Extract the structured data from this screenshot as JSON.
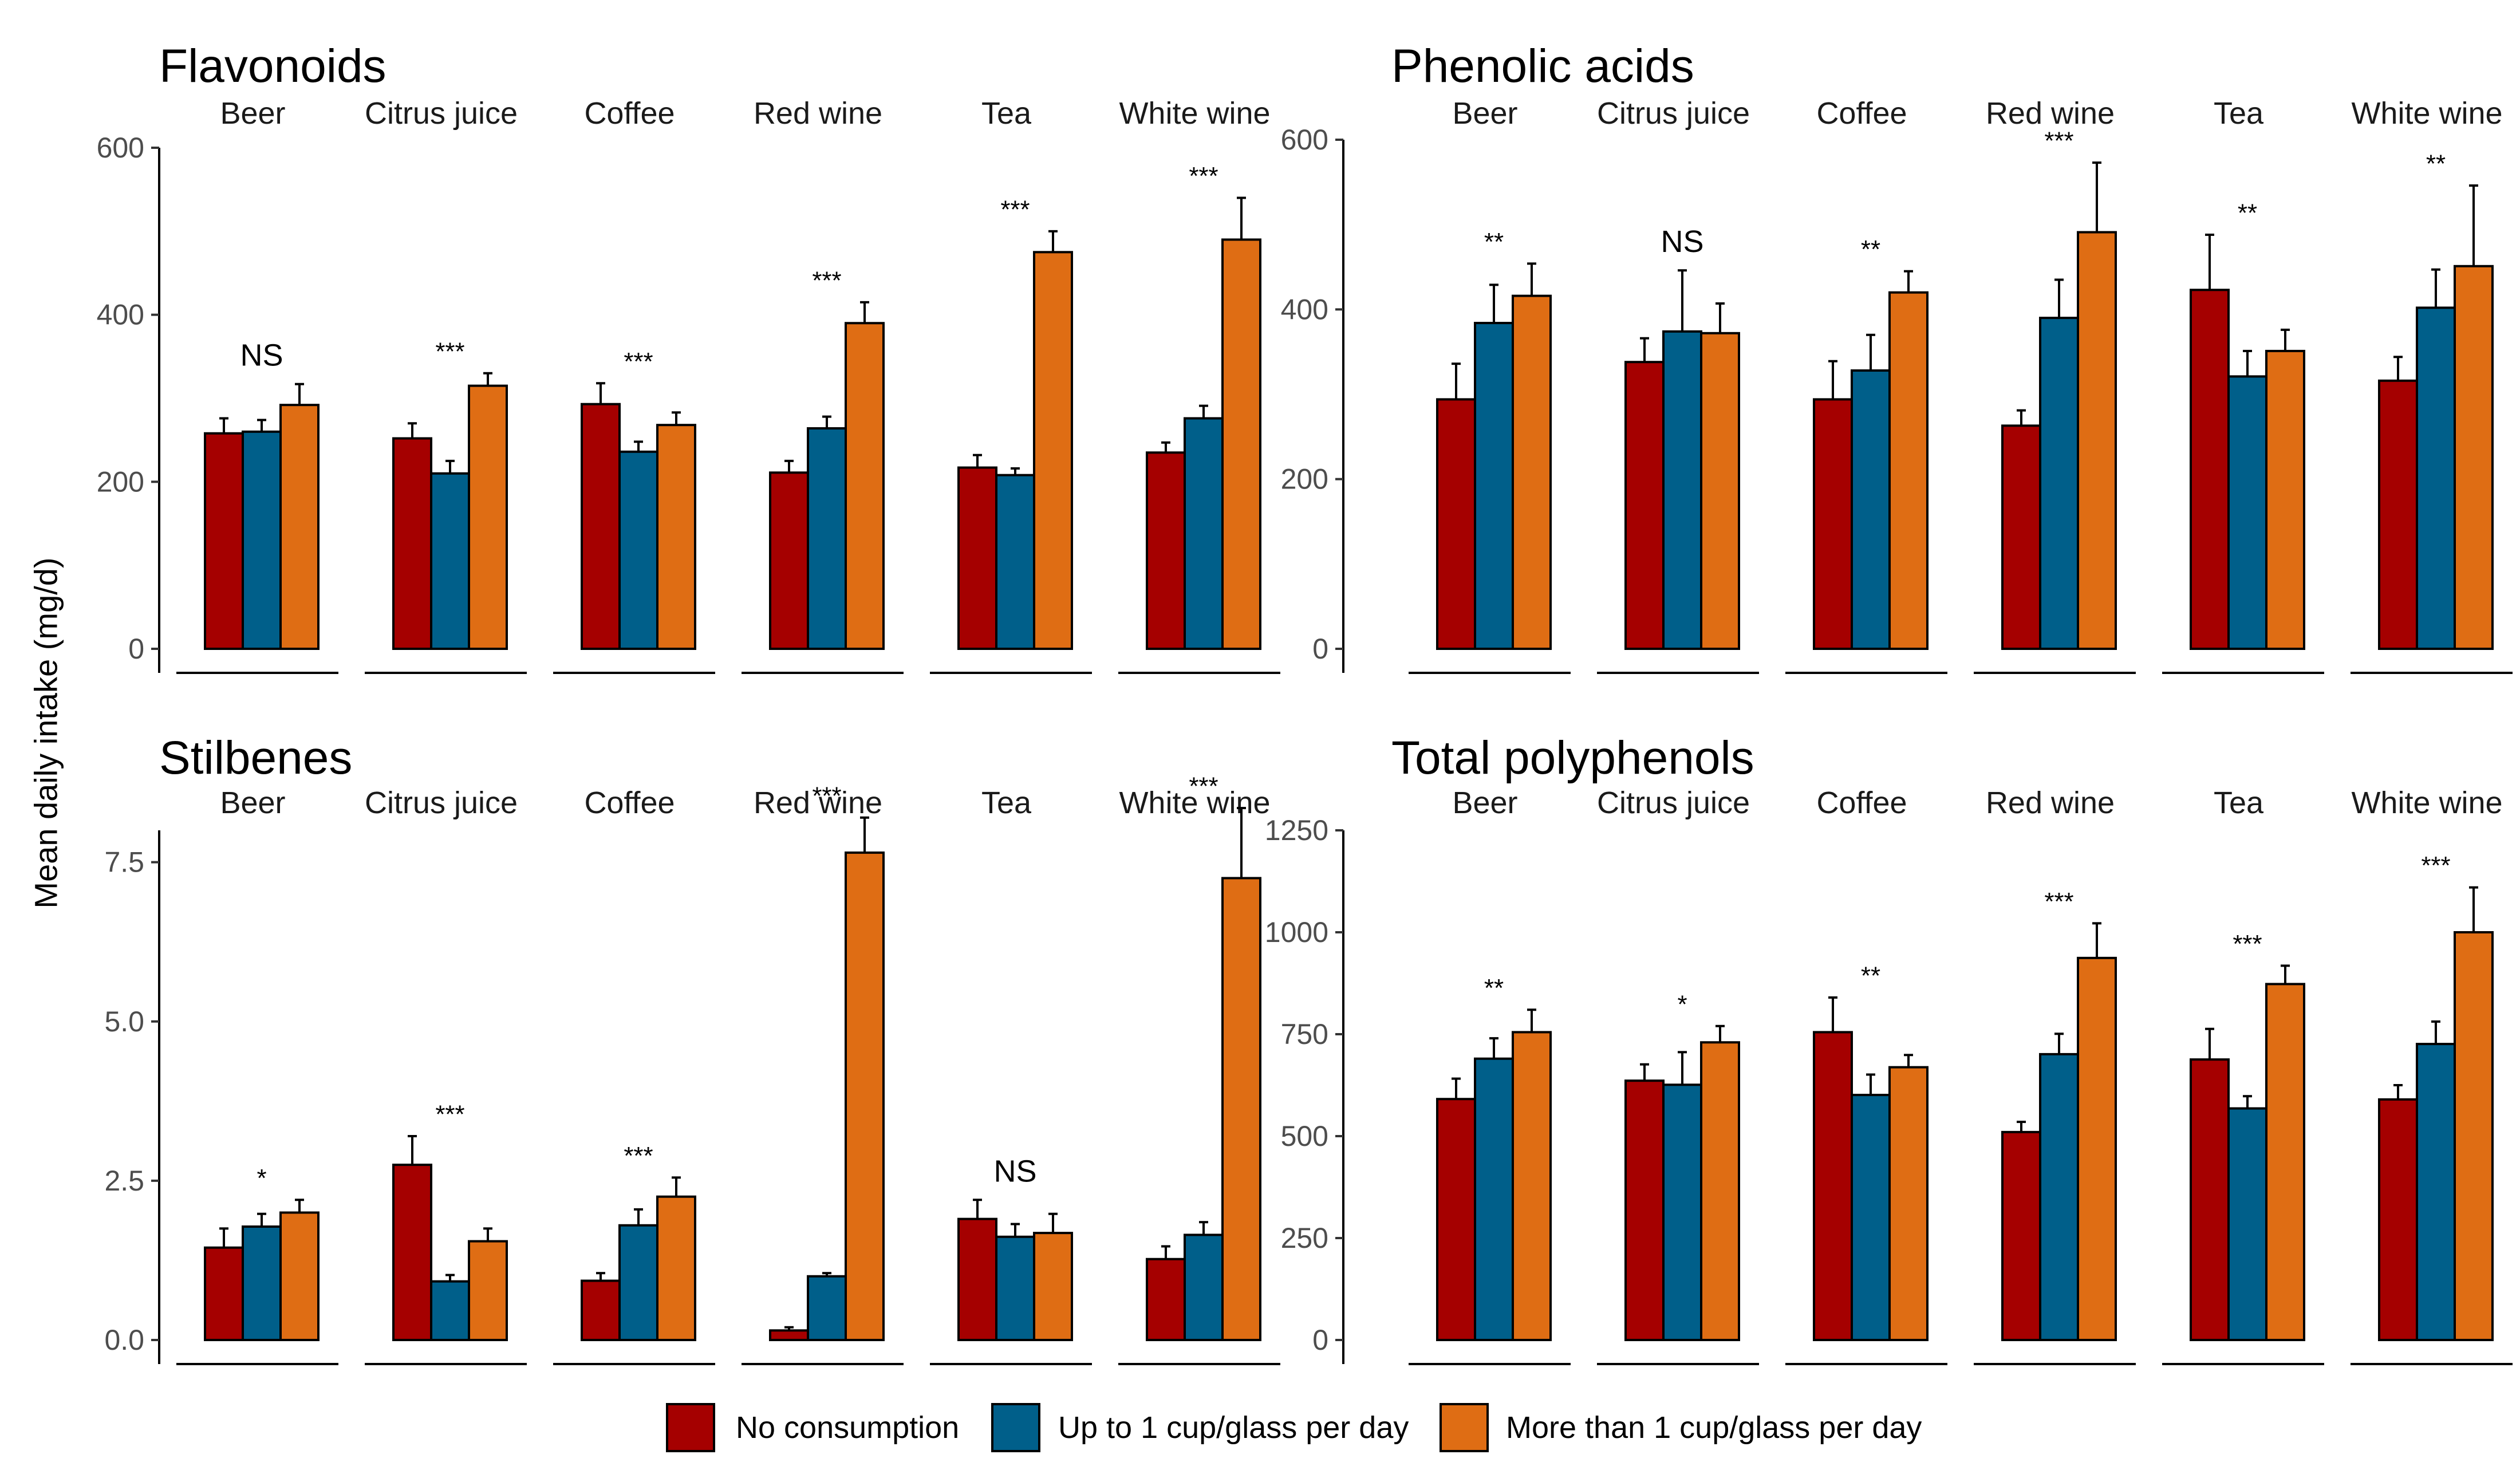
{
  "figure": {
    "y_axis_label": "Mean daily intake  (mg/d)",
    "legend": [
      {
        "label": "No consumption",
        "color": "#A50000"
      },
      {
        "label": "Up to 1 cup/glass per day",
        "color": "#005F8A"
      },
      {
        "label": "More than 1 cup/glass per day",
        "color": "#DF6D14"
      }
    ]
  },
  "chart_data": [
    {
      "type": "bar",
      "title": "Flavonoids",
      "facets": [
        "Beer",
        "Citrus juice",
        "Coffee",
        "Red wine",
        "Tea",
        "White wine"
      ],
      "series_names": [
        "No consumption",
        "Up to 1 cup/glass per day",
        "More than 1 cup/glass per day"
      ],
      "values": [
        [
          258,
          260,
          292
        ],
        [
          252,
          210,
          315
        ],
        [
          293,
          236,
          268
        ],
        [
          211,
          264,
          390
        ],
        [
          217,
          208,
          475
        ],
        [
          235,
          276,
          490
        ]
      ],
      "errors": [
        [
          18,
          14,
          25
        ],
        [
          18,
          15,
          15
        ],
        [
          25,
          12,
          15
        ],
        [
          14,
          14,
          25
        ],
        [
          15,
          8,
          25
        ],
        [
          12,
          15,
          50
        ]
      ],
      "significance": [
        "NS",
        "***",
        "***",
        "***",
        "***",
        "***"
      ],
      "yticks": [
        0,
        200,
        400,
        600
      ],
      "tick_labels": [
        "0",
        "200",
        "400",
        "600"
      ],
      "ylim": [
        0,
        600
      ],
      "xlabel": "",
      "ylabel": "Mean daily intake  (mg/d)"
    },
    {
      "type": "bar",
      "title": "Phenolic acids",
      "facets": [
        "Beer",
        "Citrus juice",
        "Coffee",
        "Red wine",
        "Tea",
        "White wine"
      ],
      "series_names": [
        "No consumption",
        "Up to 1 cup/glass per day",
        "More than 1 cup/glass per day"
      ],
      "values": [
        [
          294,
          384,
          416
        ],
        [
          338,
          374,
          372
        ],
        [
          294,
          328,
          420
        ],
        [
          263,
          390,
          491
        ],
        [
          423,
          321,
          351
        ],
        [
          316,
          402,
          451
        ]
      ],
      "errors": [
        [
          42,
          45,
          38
        ],
        [
          28,
          72,
          35
        ],
        [
          45,
          42,
          25
        ],
        [
          18,
          45,
          82
        ],
        [
          65,
          30,
          25
        ],
        [
          28,
          45,
          95
        ]
      ],
      "significance": [
        "**",
        "NS",
        "**",
        "***",
        "**",
        "**"
      ],
      "yticks": [
        0,
        200,
        400,
        600
      ],
      "tick_labels": [
        "0",
        "200",
        "400",
        "600"
      ],
      "ylim": [
        0,
        600
      ],
      "xlabel": "",
      "ylabel": ""
    },
    {
      "type": "bar",
      "title": "Stilbenes",
      "facets": [
        "Beer",
        "Citrus juice",
        "Coffee",
        "Red wine",
        "Tea",
        "White wine"
      ],
      "series_names": [
        "No consumption",
        "Up to 1 cup/glass per day",
        "More than 1 cup/glass per day"
      ],
      "values": [
        [
          1.45,
          1.78,
          2.0
        ],
        [
          2.75,
          0.92,
          1.55
        ],
        [
          0.93,
          1.8,
          2.25
        ],
        [
          0.15,
          1.0,
          7.65
        ],
        [
          1.9,
          1.62,
          1.68
        ],
        [
          1.27,
          1.65,
          7.25
        ]
      ],
      "errors": [
        [
          0.3,
          0.2,
          0.2
        ],
        [
          0.45,
          0.1,
          0.2
        ],
        [
          0.12,
          0.25,
          0.3
        ],
        [
          0.05,
          0.05,
          0.55
        ],
        [
          0.3,
          0.2,
          0.3
        ],
        [
          0.2,
          0.2,
          1.1
        ]
      ],
      "significance": [
        "*",
        "***",
        "***",
        "***",
        "NS",
        "***"
      ],
      "yticks": [
        0,
        2.5,
        5,
        7.5
      ],
      "tick_labels": [
        "0.0",
        "2.5",
        "5.0",
        "7.5"
      ],
      "ylim": [
        0,
        8
      ],
      "xlabel": "",
      "ylabel": ""
    },
    {
      "type": "bar",
      "title": "Total polyphenols",
      "facets": [
        "Beer",
        "Citrus juice",
        "Coffee",
        "Red wine",
        "Tea",
        "White wine"
      ],
      "series_names": [
        "No consumption",
        "Up to 1 cup/glass per day",
        "More than 1 cup/glass per day"
      ],
      "values": [
        [
          591,
          690,
          755
        ],
        [
          636,
          626,
          730
        ],
        [
          755,
          601,
          669
        ],
        [
          510,
          701,
          937
        ],
        [
          688,
          568,
          873
        ],
        [
          590,
          726,
          1000
        ]
      ],
      "errors": [
        [
          50,
          50,
          55
        ],
        [
          40,
          80,
          40
        ],
        [
          85,
          50,
          30
        ],
        [
          25,
          50,
          85
        ],
        [
          75,
          30,
          45
        ],
        [
          35,
          55,
          110
        ]
      ],
      "significance": [
        "**",
        "*",
        "**",
        "***",
        "***",
        "***"
      ],
      "yticks": [
        0,
        250,
        500,
        750,
        1000,
        1250
      ],
      "tick_labels": [
        "0",
        "250",
        "500",
        "750",
        "1000",
        "1250"
      ],
      "ylim": [
        0,
        1250
      ],
      "xlabel": "",
      "ylabel": ""
    }
  ]
}
